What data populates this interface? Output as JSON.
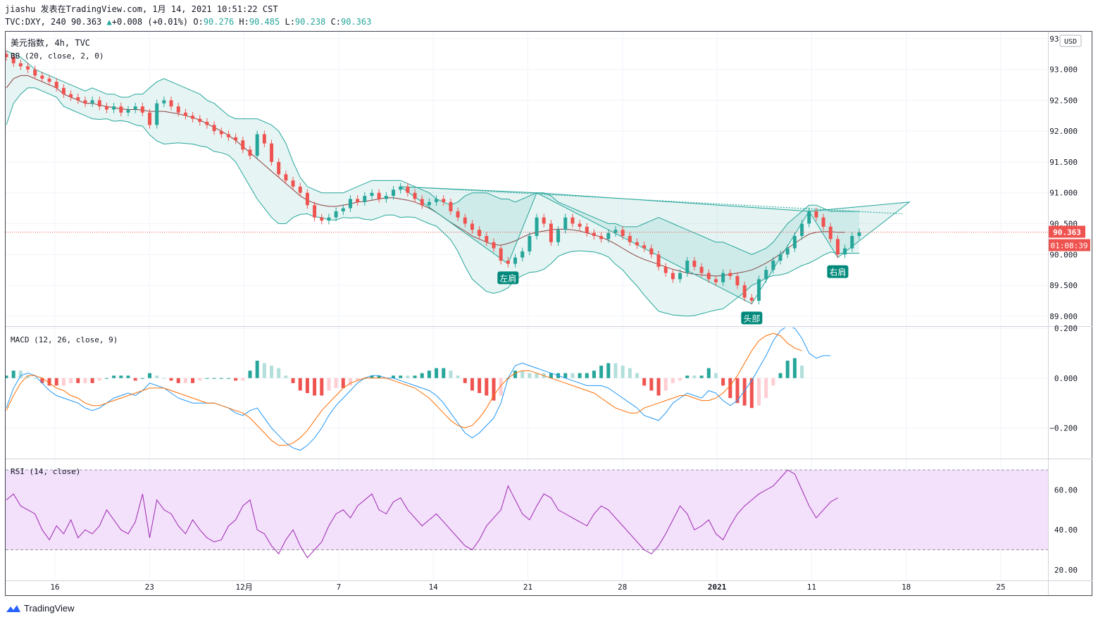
{
  "header": {
    "publisher": "jiashu 发表在TradingView.com, 1月 14, 2021 10:51:22 CST",
    "symbol": "TVC:DXY, 240",
    "last": "90.363",
    "change_arrow": "▲",
    "change": "+0.008 (+0.01%)",
    "o_label": "O:",
    "o": "90.276",
    "h_label": "H:",
    "h": "90.485",
    "l_label": "L:",
    "l": "90.238",
    "c_label": "C:",
    "c": "90.363"
  },
  "footer": {
    "brand": "TradingView",
    "logo_icon": "tradingview-logo-icon"
  },
  "colors": {
    "up": "#26a69a",
    "down": "#ef5350",
    "bb_fill": "#e0f2f1",
    "bb_line": "#26a69a",
    "bb_basis": "#8d3f3f",
    "macd_line": "#2196f3",
    "signal_line": "#ff6d00",
    "rsi_line": "#9c27b0",
    "rsi_band": "#f3e0fb",
    "price_line": "#ef5350",
    "pattern": "#26a69a"
  },
  "chart_data": [
    {
      "type": "line",
      "pane": "price",
      "title": "美元指数, 4h, TVC",
      "indicator": "BB (20, close, 2, 0)",
      "currency": "USD",
      "y_ticks": [
        "93.500",
        "93.000",
        "92.500",
        "92.000",
        "91.500",
        "91.000",
        "90.500",
        "90.000",
        "89.500",
        "89.000"
      ],
      "ylim": [
        88.85,
        93.6
      ],
      "x_ticks": [
        "16",
        "23",
        "12月",
        "7",
        "14",
        "21",
        "28",
        "2021",
        "11",
        "18",
        "25"
      ],
      "current_price": "90.363",
      "countdown": "01:08:39",
      "annotations": [
        "左肩",
        "头部",
        "右肩"
      ],
      "close": [
        93.2,
        93.1,
        93.05,
        93,
        92.9,
        92.85,
        92.8,
        92.7,
        92.6,
        92.55,
        92.5,
        92.45,
        92.5,
        92.4,
        92.35,
        92.4,
        92.3,
        92.35,
        92.4,
        92.3,
        92.1,
        92.45,
        92.5,
        92.4,
        92.3,
        92.25,
        92.2,
        92.15,
        92.1,
        92,
        91.95,
        91.9,
        91.85,
        91.7,
        91.6,
        91.95,
        91.8,
        91.5,
        91.3,
        91.2,
        91.1,
        91,
        90.8,
        90.6,
        90.55,
        90.6,
        90.7,
        90.75,
        90.9,
        90.85,
        90.95,
        91,
        90.9,
        90.95,
        91.05,
        91.1,
        91,
        90.9,
        90.8,
        90.85,
        90.9,
        90.85,
        90.7,
        90.6,
        90.5,
        90.4,
        90.3,
        90.2,
        90.1,
        89.9,
        89.85,
        89.95,
        90.05,
        90.3,
        90.6,
        90.5,
        90.2,
        90.4,
        90.6,
        90.5,
        90.45,
        90.35,
        90.3,
        90.25,
        90.35,
        90.4,
        90.3,
        90.2,
        90.15,
        90.1,
        90,
        89.8,
        89.7,
        89.6,
        89.7,
        89.9,
        89.8,
        89.7,
        89.6,
        89.55,
        89.7,
        89.65,
        89.5,
        89.3,
        89.25,
        89.6,
        89.75,
        89.9,
        90,
        90.1,
        90.3,
        90.5,
        90.7,
        90.6,
        90.45,
        90.25,
        90,
        90.1,
        90.3,
        90.36
      ],
      "bb_upper": [
        93.3,
        93.25,
        93.2,
        93.1,
        93,
        92.95,
        92.9,
        92.85,
        92.8,
        92.75,
        92.7,
        92.65,
        92.7,
        92.65,
        92.6,
        92.6,
        92.55,
        92.55,
        92.6,
        92.6,
        92.7,
        92.8,
        92.85,
        92.8,
        92.75,
        92.7,
        92.65,
        92.6,
        92.5,
        92.45,
        92.35,
        92.25,
        92.2,
        92.2,
        92.2,
        92.2,
        92.15,
        92.1,
        92,
        91.8,
        91.5,
        91.25,
        91.1,
        91.05,
        91,
        91,
        91,
        91,
        91.05,
        91.1,
        91.15,
        91.2,
        91.2,
        91.2,
        91.2,
        91.2,
        91.15,
        91.1,
        91.05,
        91,
        90.9,
        90.85,
        90.8,
        90.85,
        90.95,
        91,
        91,
        91,
        90.95,
        90.9,
        90.9,
        90.85,
        90.9,
        90.95,
        91,
        91,
        90.95,
        90.85,
        90.8,
        90.75,
        90.7,
        90.65,
        90.6,
        90.55,
        90.5,
        90.5,
        90.45,
        90.45,
        90.45,
        90.5,
        90.55,
        90.6,
        90.55,
        90.5,
        90.45,
        90.4,
        90.35,
        90.3,
        90.25,
        90.2,
        90.2,
        90.15,
        90.1,
        90.05,
        90,
        90.05,
        90.1,
        90.2,
        90.35,
        90.5,
        90.6,
        90.7,
        90.8,
        90.8,
        90.75,
        90.7,
        90.7,
        90.7,
        90.7,
        90.7
      ],
      "bb_basis": [
        92.7,
        92.85,
        92.9,
        92.9,
        92.85,
        92.8,
        92.75,
        92.7,
        92.6,
        92.55,
        92.5,
        92.45,
        92.45,
        92.42,
        92.4,
        92.38,
        92.36,
        92.35,
        92.35,
        92.34,
        92.32,
        92.32,
        92.32,
        92.3,
        92.28,
        92.25,
        92.22,
        92.18,
        92.12,
        92.06,
        92,
        91.93,
        91.85,
        91.75,
        91.65,
        91.55,
        91.45,
        91.35,
        91.25,
        91.15,
        91.05,
        90.95,
        90.88,
        90.83,
        90.8,
        90.78,
        90.78,
        90.8,
        90.82,
        90.85,
        90.86,
        90.88,
        90.9,
        90.92,
        90.92,
        90.9,
        90.88,
        90.85,
        90.8,
        90.75,
        90.68,
        90.6,
        90.52,
        90.45,
        90.38,
        90.3,
        90.25,
        90.2,
        90.16,
        90.15,
        90.18,
        90.22,
        90.28,
        90.33,
        90.36,
        90.38,
        90.4,
        90.41,
        90.41,
        90.4,
        90.38,
        90.35,
        90.32,
        90.28,
        90.23,
        90.17,
        90.1,
        90.03,
        89.97,
        89.92,
        89.88,
        89.84,
        89.8,
        89.76,
        89.73,
        89.7,
        89.68,
        89.67,
        89.66,
        89.65,
        89.66,
        89.68,
        89.7,
        89.72,
        89.75,
        89.8,
        89.86,
        89.93,
        90.01,
        90.1,
        90.18,
        90.26,
        90.33,
        90.36,
        90.37,
        90.37,
        90.36,
        90.36
      ],
      "bb_lower": [
        92.1,
        92.45,
        92.6,
        92.7,
        92.7,
        92.65,
        92.6,
        92.55,
        92.4,
        92.35,
        92.3,
        92.25,
        92.2,
        92.19,
        92.2,
        92.16,
        92.17,
        92.15,
        92.1,
        92.08,
        91.94,
        91.84,
        91.79,
        91.8,
        91.81,
        91.8,
        91.79,
        91.76,
        91.74,
        91.67,
        91.65,
        91.61,
        91.5,
        91.3,
        91.1,
        90.9,
        90.75,
        90.6,
        90.5,
        90.5,
        90.6,
        90.65,
        90.66,
        90.61,
        90.6,
        90.56,
        90.56,
        90.6,
        90.59,
        90.6,
        90.57,
        90.56,
        90.6,
        90.64,
        90.64,
        90.6,
        90.61,
        90.6,
        90.55,
        90.5,
        90.46,
        90.35,
        90.24,
        90.05,
        89.81,
        89.6,
        89.5,
        89.4,
        89.37,
        89.4,
        89.46,
        89.59,
        89.66,
        89.71,
        89.72,
        89.76,
        89.85,
        89.97,
        90.02,
        90.05,
        90.06,
        90.05,
        90.04,
        90.01,
        89.96,
        89.84,
        89.75,
        89.61,
        89.49,
        89.34,
        89.21,
        89.08,
        89.05,
        89.02,
        89.01,
        89,
        89.01,
        89.04,
        89.07,
        89.1,
        89.12,
        89.21,
        89.3,
        89.39,
        89.5,
        89.55,
        89.62,
        89.66,
        89.67,
        89.7,
        89.76,
        89.82,
        89.86,
        89.92,
        89.99,
        90.04,
        90.02,
        90.02,
        90.02,
        90.02
      ]
    },
    {
      "type": "line",
      "pane": "macd",
      "title": "MACD (12, 26, close, 9)",
      "y_ticks": [
        "0.200",
        "0.000",
        "−0.200"
      ],
      "ylim": [
        -0.32,
        0.2
      ],
      "macd": [
        -0.12,
        -0.04,
        0.01,
        0.02,
        0.01,
        -0.02,
        -0.05,
        -0.07,
        -0.08,
        -0.09,
        -0.1,
        -0.12,
        -0.13,
        -0.12,
        -0.1,
        -0.08,
        -0.07,
        -0.06,
        -0.07,
        -0.05,
        -0.02,
        -0.03,
        -0.04,
        -0.06,
        -0.08,
        -0.09,
        -0.1,
        -0.1,
        -0.1,
        -0.1,
        -0.11,
        -0.12,
        -0.14,
        -0.15,
        -0.13,
        -0.12,
        -0.16,
        -0.2,
        -0.23,
        -0.26,
        -0.28,
        -0.29,
        -0.27,
        -0.24,
        -0.2,
        -0.15,
        -0.11,
        -0.08,
        -0.05,
        -0.02,
        0,
        0.01,
        0.01,
        0,
        0,
        -0.01,
        -0.02,
        -0.03,
        -0.04,
        -0.05,
        -0.07,
        -0.1,
        -0.14,
        -0.18,
        -0.22,
        -0.24,
        -0.22,
        -0.19,
        -0.16,
        -0.1,
        0,
        0.05,
        0.06,
        0.05,
        0.04,
        0.03,
        0.02,
        0.01,
        0,
        -0.01,
        -0.02,
        -0.03,
        -0.03,
        -0.03,
        -0.04,
        -0.06,
        -0.08,
        -0.1,
        -0.12,
        -0.15,
        -0.16,
        -0.17,
        -0.14,
        -0.1,
        -0.08,
        -0.06,
        -0.07,
        -0.08,
        -0.05,
        -0.06,
        -0.09,
        -0.11,
        -0.09,
        -0.05,
        -0.01,
        0.04,
        0.09,
        0.15,
        0.19,
        0.21,
        0.2,
        0.16,
        0.1,
        0.08,
        0.09,
        0.09
      ],
      "signal": [
        -0.13,
        -0.07,
        -0.02,
        0.01,
        0.01,
        0,
        -0.02,
        -0.04,
        -0.05,
        -0.07,
        -0.08,
        -0.1,
        -0.11,
        -0.11,
        -0.1,
        -0.09,
        -0.08,
        -0.07,
        -0.06,
        -0.05,
        -0.04,
        -0.04,
        -0.04,
        -0.05,
        -0.06,
        -0.07,
        -0.08,
        -0.09,
        -0.1,
        -0.1,
        -0.11,
        -0.12,
        -0.13,
        -0.14,
        -0.16,
        -0.19,
        -0.22,
        -0.25,
        -0.27,
        -0.27,
        -0.26,
        -0.24,
        -0.21,
        -0.17,
        -0.13,
        -0.1,
        -0.07,
        -0.04,
        -0.02,
        -0.01,
        0,
        0,
        0,
        0,
        -0.01,
        -0.02,
        -0.03,
        -0.04,
        -0.06,
        -0.08,
        -0.11,
        -0.14,
        -0.17,
        -0.19,
        -0.2,
        -0.19,
        -0.16,
        -0.12,
        -0.07,
        -0.03,
        0,
        0.02,
        0.03,
        0.03,
        0.02,
        0.01,
        0,
        -0.01,
        -0.02,
        -0.03,
        -0.04,
        -0.05,
        -0.06,
        -0.08,
        -0.1,
        -0.12,
        -0.13,
        -0.14,
        -0.14,
        -0.12,
        -0.11,
        -0.1,
        -0.09,
        -0.08,
        -0.07,
        -0.07,
        -0.08,
        -0.09,
        -0.09,
        -0.08,
        -0.06,
        -0.03,
        0.01,
        0.06,
        0.11,
        0.15,
        0.17,
        0.18,
        0.17,
        0.14,
        0.12,
        0.11
      ]
    },
    {
      "type": "line",
      "pane": "rsi",
      "title": "RSI (14, close)",
      "y_ticks": [
        "60.00",
        "40.00",
        "20.00"
      ],
      "ylim": [
        15,
        75
      ],
      "band": [
        30,
        70
      ],
      "rsi": [
        55,
        58,
        52,
        50,
        48,
        40,
        35,
        42,
        38,
        45,
        36,
        40,
        38,
        42,
        50,
        45,
        40,
        38,
        44,
        58,
        36,
        55,
        50,
        48,
        42,
        38,
        45,
        40,
        36,
        34,
        35,
        42,
        45,
        52,
        55,
        40,
        38,
        32,
        28,
        35,
        40,
        32,
        26,
        30,
        34,
        42,
        48,
        50,
        46,
        52,
        55,
        58,
        50,
        48,
        54,
        56,
        50,
        46,
        42,
        45,
        48,
        44,
        40,
        36,
        32,
        30,
        35,
        42,
        46,
        50,
        62,
        55,
        48,
        45,
        52,
        58,
        56,
        50,
        48,
        46,
        44,
        42,
        48,
        52,
        50,
        46,
        42,
        38,
        34,
        30,
        28,
        32,
        38,
        45,
        52,
        48,
        40,
        42,
        45,
        38,
        35,
        42,
        48,
        52,
        55,
        58,
        60,
        62,
        66,
        70,
        68,
        60,
        52,
        46,
        50,
        54,
        56
      ]
    }
  ]
}
